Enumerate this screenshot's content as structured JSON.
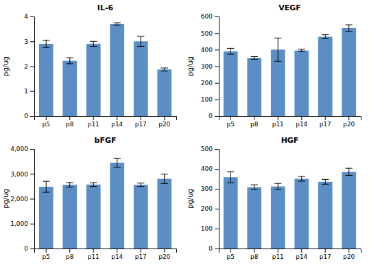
{
  "chart_data": [
    {
      "type": "bar",
      "title": "IL-6",
      "ylabel": "pg/ug",
      "categories": [
        "p5",
        "p8",
        "p11",
        "p14",
        "p17",
        "p20"
      ],
      "values": [
        2.9,
        2.22,
        2.9,
        3.7,
        3.0,
        1.87
      ],
      "errors": [
        0.15,
        0.12,
        0.1,
        0.05,
        0.2,
        0.06
      ],
      "color": "#5B8EC4",
      "ylim": [
        0,
        4
      ],
      "yticks": [
        0,
        1,
        2,
        3,
        4
      ],
      "grid": false
    },
    {
      "type": "bar",
      "title": "VEGF",
      "ylabel": "pg/ug",
      "categories": [
        "p5",
        "p8",
        "p11",
        "p14",
        "p17",
        "p20"
      ],
      "values": [
        390,
        350,
        400,
        395,
        478,
        530
      ],
      "errors": [
        18,
        8,
        70,
        8,
        12,
        20
      ],
      "color": "#5B8EC4",
      "ylim": [
        0,
        600
      ],
      "yticks": [
        0,
        100,
        200,
        300,
        400,
        500,
        600
      ],
      "grid": false
    },
    {
      "type": "bar",
      "title": "bFGF",
      "ylabel": "pg/ug",
      "categories": [
        "p5",
        "p8",
        "p11",
        "p14",
        "p17",
        "p20"
      ],
      "values": [
        2480,
        2560,
        2570,
        3450,
        2560,
        2800
      ],
      "errors": [
        220,
        90,
        75,
        180,
        70,
        190
      ],
      "color": "#5B8EC4",
      "ylim": [
        0,
        4000
      ],
      "yticks": [
        0,
        {
          "value": 1000,
          "label": "1,000"
        },
        {
          "value": 2000,
          "label": "2,000"
        },
        {
          "value": 3000,
          "label": "3,000"
        },
        {
          "value": 4000,
          "label": "4,000"
        }
      ],
      "grid": false
    },
    {
      "type": "bar",
      "title": "HGF",
      "ylabel": "pg/ug",
      "categories": [
        "p5",
        "p8",
        "p11",
        "p14",
        "p17",
        "p20"
      ],
      "values": [
        358,
        308,
        312,
        350,
        335,
        385
      ],
      "errors": [
        28,
        12,
        15,
        12,
        12,
        18
      ],
      "color": "#5B8EC4",
      "ylim": [
        0,
        500
      ],
      "yticks": [
        0,
        100,
        200,
        300,
        400,
        500
      ],
      "grid": false
    }
  ]
}
